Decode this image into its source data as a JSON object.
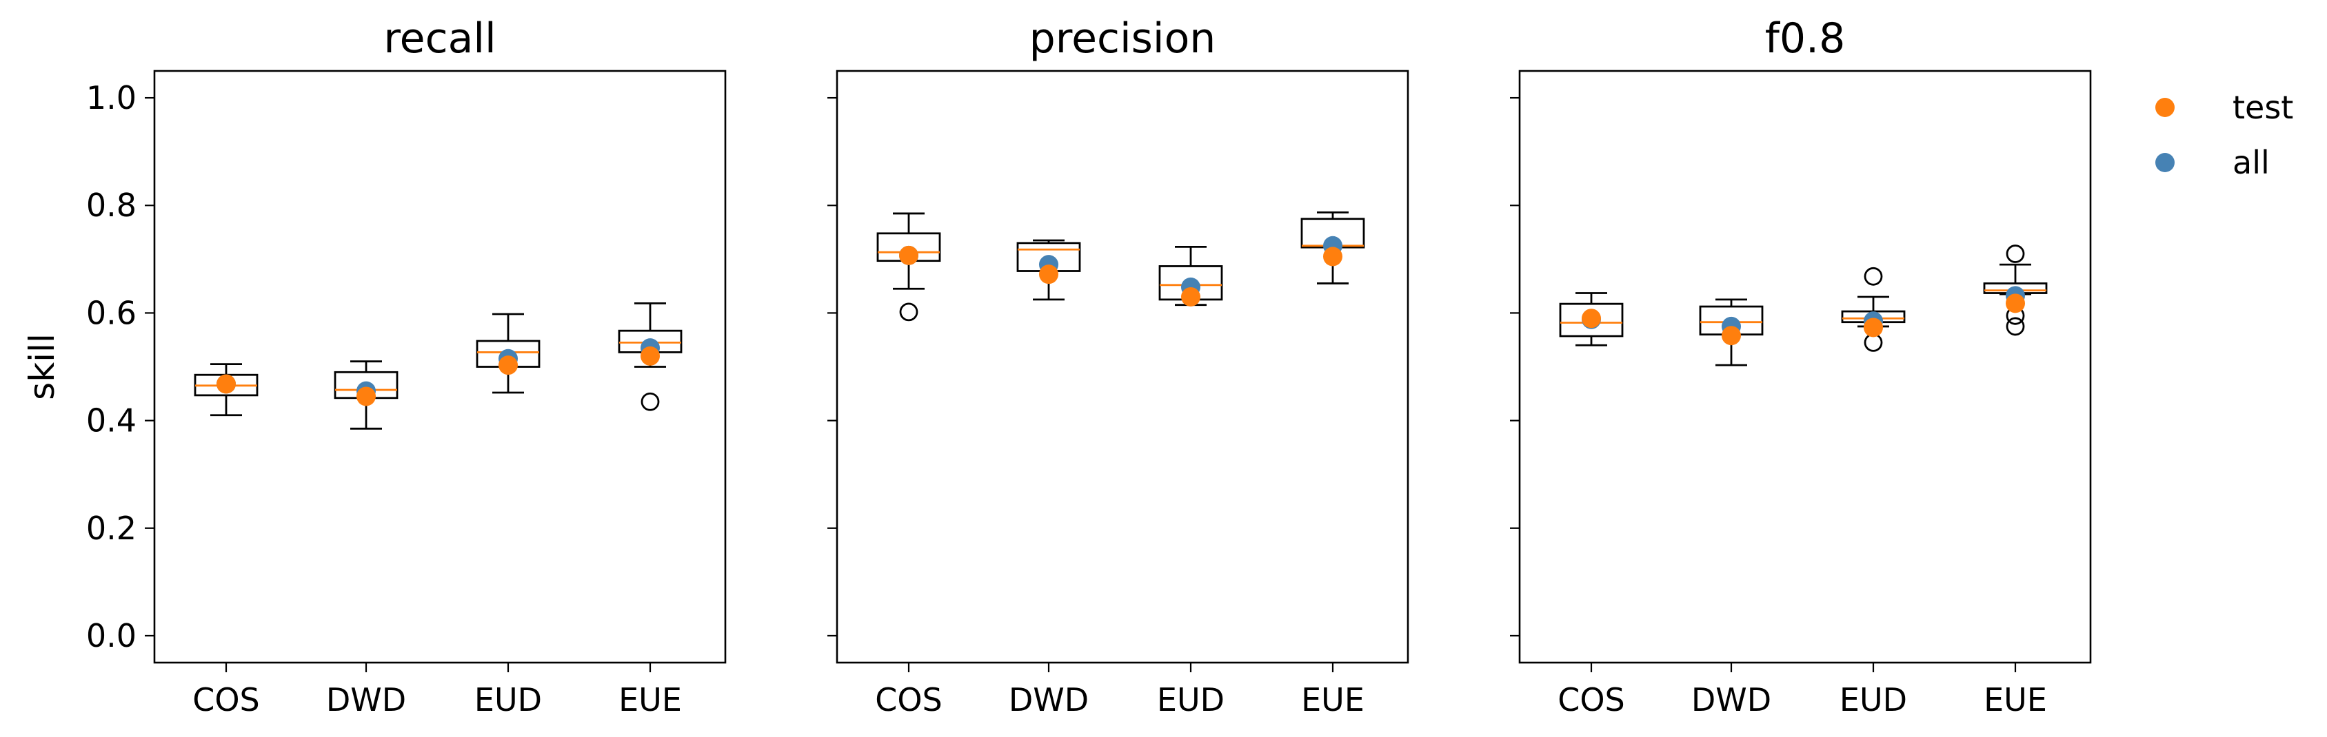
{
  "chart_data": {
    "type": "box",
    "ylabel": "skill",
    "ylim": [
      -0.05,
      1.05
    ],
    "yticks": [
      "0.0",
      "0.2",
      "0.4",
      "0.6",
      "0.8",
      "1.0"
    ],
    "ytick_values": [
      0.0,
      0.2,
      0.4,
      0.6,
      0.8,
      1.0
    ],
    "categories": [
      "COS",
      "DWD",
      "EUD",
      "EUE"
    ],
    "legend": {
      "placement": "upper right, outside",
      "entries": [
        {
          "name": "test",
          "color": "#ff7f0e"
        },
        {
          "name": "all",
          "color": "#4682b4"
        }
      ]
    },
    "colors": {
      "median": "#ff7f0e",
      "test": "#ff7f0e",
      "all": "#4682b4",
      "box": "#000000"
    },
    "panels": [
      {
        "title": "recall",
        "boxes": [
          {
            "category": "COS",
            "whisker_low": 0.41,
            "q1": 0.447,
            "median": 0.465,
            "q3": 0.485,
            "whisker_high": 0.505,
            "outliers": [],
            "all": 0.468,
            "test": 0.468
          },
          {
            "category": "DWD",
            "whisker_low": 0.385,
            "q1": 0.442,
            "median": 0.457,
            "q3": 0.49,
            "whisker_high": 0.51,
            "outliers": [],
            "all": 0.455,
            "test": 0.445
          },
          {
            "category": "EUD",
            "whisker_low": 0.452,
            "q1": 0.5,
            "median": 0.527,
            "q3": 0.548,
            "whisker_high": 0.598,
            "outliers": [],
            "all": 0.515,
            "test": 0.503
          },
          {
            "category": "EUE",
            "whisker_low": 0.5,
            "q1": 0.527,
            "median": 0.545,
            "q3": 0.567,
            "whisker_high": 0.618,
            "outliers": [
              0.435
            ],
            "all": 0.535,
            "test": 0.52
          }
        ]
      },
      {
        "title": "precision",
        "boxes": [
          {
            "category": "COS",
            "whisker_low": 0.645,
            "q1": 0.697,
            "median": 0.713,
            "q3": 0.748,
            "whisker_high": 0.785,
            "outliers": [
              0.602
            ],
            "all": 0.707,
            "test": 0.707
          },
          {
            "category": "DWD",
            "whisker_low": 0.625,
            "q1": 0.678,
            "median": 0.718,
            "q3": 0.73,
            "whisker_high": 0.735,
            "outliers": [],
            "all": 0.69,
            "test": 0.672
          },
          {
            "category": "EUD",
            "whisker_low": 0.615,
            "q1": 0.625,
            "median": 0.652,
            "q3": 0.687,
            "whisker_high": 0.723,
            "outliers": [],
            "all": 0.648,
            "test": 0.63
          },
          {
            "category": "EUE",
            "whisker_low": 0.655,
            "q1": 0.722,
            "median": 0.725,
            "q3": 0.775,
            "whisker_high": 0.787,
            "outliers": [],
            "all": 0.725,
            "test": 0.705
          }
        ]
      },
      {
        "title": "f0.8",
        "boxes": [
          {
            "category": "COS",
            "whisker_low": 0.54,
            "q1": 0.557,
            "median": 0.582,
            "q3": 0.617,
            "whisker_high": 0.637,
            "outliers": [],
            "all": 0.588,
            "test": 0.59
          },
          {
            "category": "DWD",
            "whisker_low": 0.503,
            "q1": 0.56,
            "median": 0.583,
            "q3": 0.612,
            "whisker_high": 0.625,
            "outliers": [],
            "all": 0.575,
            "test": 0.558
          },
          {
            "category": "EUD",
            "whisker_low": 0.575,
            "q1": 0.583,
            "median": 0.59,
            "q3": 0.603,
            "whisker_high": 0.63,
            "outliers": [
              0.545,
              0.668
            ],
            "all": 0.585,
            "test": 0.573
          },
          {
            "category": "EUE",
            "whisker_low": 0.635,
            "q1": 0.637,
            "median": 0.642,
            "q3": 0.655,
            "whisker_high": 0.69,
            "outliers": [
              0.575,
              0.595,
              0.71
            ],
            "all": 0.632,
            "test": 0.618
          }
        ]
      }
    ]
  }
}
